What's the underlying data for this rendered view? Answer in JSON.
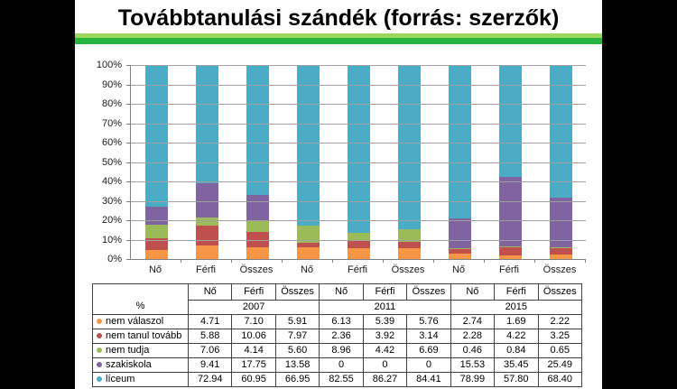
{
  "slide": {
    "title": "Továbbtanulási szándék (forrás: szerzők)",
    "background": "#FFFFFF",
    "frame_color": "#000000",
    "divider_light_color": "#9CD65B",
    "divider_dark_color": "#28B441"
  },
  "chart_data": {
    "type": "bar",
    "subtype": "stacked-100-percent",
    "title": "",
    "xlabel": "",
    "ylabel": "",
    "categories": [
      "Nő",
      "Férfi",
      "Összes",
      "Nő",
      "Férfi",
      "Összes",
      "Nő",
      "Férfi",
      "Összes"
    ],
    "category_groups": [
      "2007",
      "2011",
      "2015"
    ],
    "series": [
      {
        "name": "nem válaszol",
        "color": "#F79646",
        "values": [
          4.71,
          7.1,
          5.91,
          6.13,
          5.39,
          5.76,
          2.74,
          1.69,
          2.22
        ]
      },
      {
        "name": "nem tanul tovább",
        "color": "#C0504D",
        "values": [
          5.88,
          10.06,
          7.97,
          2.36,
          3.92,
          3.14,
          2.28,
          4.22,
          3.25
        ]
      },
      {
        "name": "nem tudja",
        "color": "#9BBB59",
        "values": [
          7.06,
          4.14,
          5.6,
          8.96,
          4.42,
          6.69,
          0.46,
          0.84,
          0.65
        ]
      },
      {
        "name": "szakiskola",
        "color": "#8064A2",
        "values": [
          9.41,
          17.75,
          13.58,
          0,
          0,
          0,
          15.53,
          35.45,
          25.49
        ]
      },
      {
        "name": "líceum",
        "color": "#4BACC6",
        "values": [
          72.94,
          60.95,
          66.95,
          82.55,
          86.27,
          84.41,
          78.99,
          57.8,
          68.4
        ]
      }
    ],
    "y_ticks": [
      "100%",
      "90%",
      "80%",
      "70%",
      "60%",
      "50%",
      "40%",
      "30%",
      "20%",
      "10%",
      "0%"
    ],
    "ylim": [
      0,
      100
    ],
    "grid": true,
    "grid_color": "#A0A0A0",
    "axis_color": "#808080",
    "legend_position": "table-below"
  },
  "table": {
    "corner_label": "%",
    "col_headers": [
      "Nő",
      "Férfi",
      "Összes",
      "Nő",
      "Férfi",
      "Összes",
      "Nő",
      "Férfi",
      "Összes"
    ],
    "year_headers": [
      "2007",
      "2011",
      "2015"
    ],
    "rows": [
      {
        "label": "nem válaszol",
        "marker_color": "#F79646",
        "values": [
          "4.71",
          "7.10",
          "5.91",
          "6.13",
          "5.39",
          "5.76",
          "2.74",
          "1.69",
          "2.22"
        ]
      },
      {
        "label": "nem tanul tovább",
        "marker_color": "#C0504D",
        "values": [
          "5.88",
          "10.06",
          "7.97",
          "2.36",
          "3.92",
          "3.14",
          "2.28",
          "4.22",
          "3.25"
        ]
      },
      {
        "label": "nem tudja",
        "marker_color": "#9BBB59",
        "values": [
          "7.06",
          "4.14",
          "5.60",
          "8.96",
          "4.42",
          "6.69",
          "0.46",
          "0.84",
          "0.65"
        ]
      },
      {
        "label": "szakiskola",
        "marker_color": "#8064A2",
        "values": [
          "9.41",
          "17.75",
          "13.58",
          "0",
          "0",
          "0",
          "15.53",
          "35.45",
          "25.49"
        ]
      },
      {
        "label": "líceum",
        "marker_color": "#4BACC6",
        "values": [
          "72.94",
          "60.95",
          "66.95",
          "82.55",
          "86.27",
          "84.41",
          "78.99",
          "57.80",
          "68.40"
        ]
      }
    ]
  }
}
